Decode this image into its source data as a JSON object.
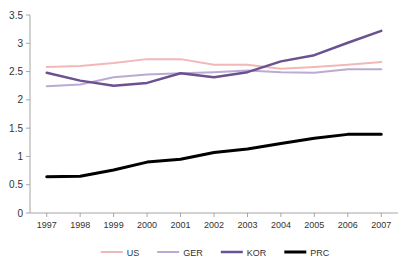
{
  "chart_data": {
    "type": "line",
    "categories": [
      "1997",
      "1998",
      "1999",
      "2000",
      "2001",
      "2002",
      "2003",
      "2004",
      "2005",
      "2006",
      "2007"
    ],
    "series": [
      {
        "name": "US",
        "color": "#f2b8b8",
        "values": [
          2.58,
          2.6,
          2.65,
          2.72,
          2.72,
          2.62,
          2.62,
          2.55,
          2.58,
          2.62,
          2.67
        ]
      },
      {
        "name": "GER",
        "color": "#b9abd2",
        "values": [
          2.24,
          2.27,
          2.4,
          2.45,
          2.47,
          2.49,
          2.52,
          2.49,
          2.48,
          2.54,
          2.54
        ]
      },
      {
        "name": "KOR",
        "color": "#6b5190",
        "values": [
          2.48,
          2.34,
          2.25,
          2.3,
          2.47,
          2.4,
          2.49,
          2.68,
          2.79,
          3.01,
          3.22
        ]
      },
      {
        "name": "PRC",
        "color": "#000000",
        "values": [
          0.64,
          0.65,
          0.76,
          0.9,
          0.95,
          1.07,
          1.13,
          1.23,
          1.32,
          1.39,
          1.39
        ]
      }
    ],
    "ylim": [
      0,
      3.5
    ],
    "yticks": [
      0,
      0.5,
      1,
      1.5,
      2,
      2.5,
      3,
      3.5
    ],
    "grid": false,
    "legend": "bottom"
  }
}
